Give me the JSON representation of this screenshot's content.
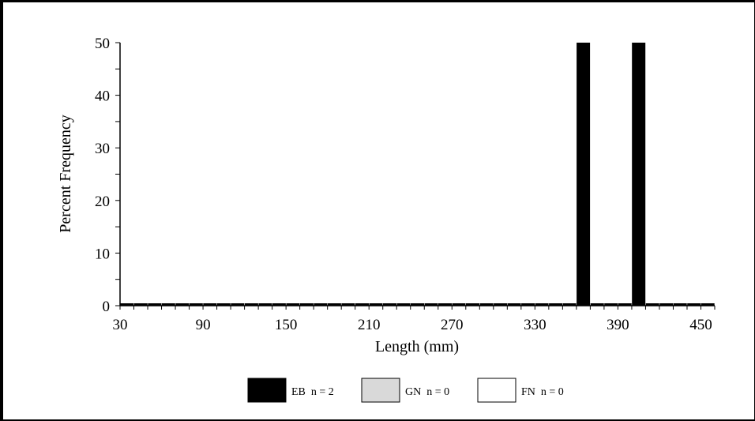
{
  "chart_data": {
    "type": "bar",
    "xlabel": "Length (mm)",
    "ylabel": "Percent Frequency",
    "x_ticks": [
      30,
      90,
      150,
      210,
      270,
      330,
      390,
      450
    ],
    "y_ticks": [
      0,
      10,
      20,
      30,
      40,
      50
    ],
    "xlim": [
      30,
      460
    ],
    "ylim": [
      0,
      50
    ],
    "bin_width": 10,
    "series": [
      {
        "name": "EB",
        "count_label": "n = 2",
        "color": "#000000",
        "bins": [
          30,
          40,
          50,
          60,
          70,
          80,
          90,
          100,
          110,
          120,
          130,
          140,
          150,
          160,
          170,
          180,
          190,
          200,
          210,
          220,
          230,
          240,
          250,
          260,
          270,
          280,
          290,
          300,
          310,
          320,
          330,
          340,
          350,
          360,
          370,
          380,
          390,
          400,
          410,
          420,
          430,
          440,
          450
        ],
        "values": [
          0,
          0,
          0,
          0,
          0,
          0,
          0,
          0,
          0,
          0,
          0,
          0,
          0,
          0,
          0,
          0,
          0,
          0,
          0,
          0,
          0,
          0,
          0,
          0,
          0,
          0,
          0,
          0,
          0,
          0,
          0,
          0,
          0,
          50,
          0,
          0,
          0,
          50,
          0,
          0,
          0,
          0,
          0
        ]
      },
      {
        "name": "GN",
        "count_label": "n = 0",
        "color": "#d9d9d9",
        "values": []
      },
      {
        "name": "FN",
        "count_label": "n = 0",
        "color": "#ffffff",
        "values": []
      }
    ]
  }
}
